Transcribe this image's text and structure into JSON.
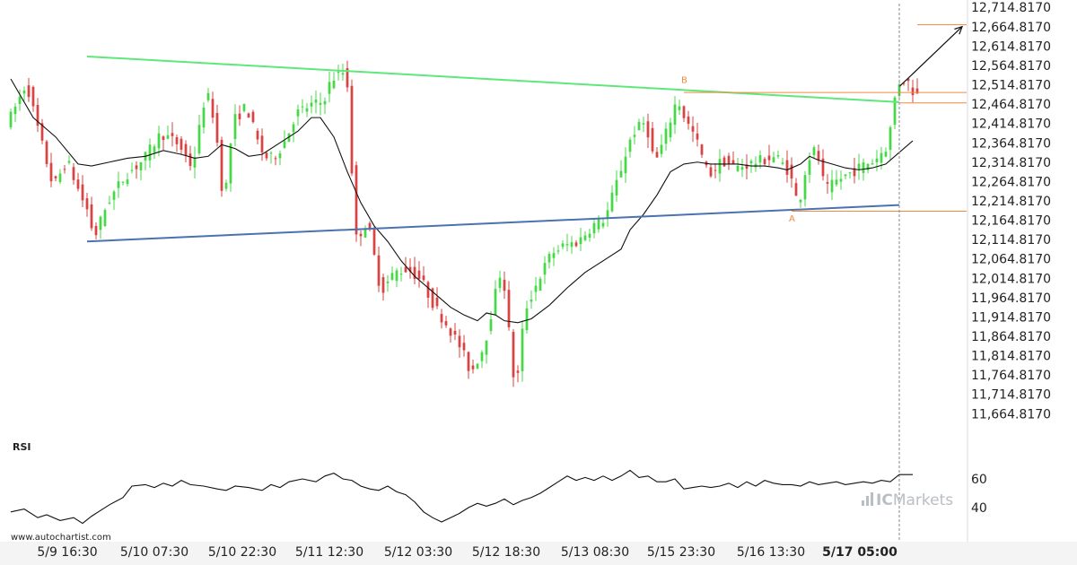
{
  "chart_data": [
    {
      "type": "candlestick",
      "title": "",
      "colors": {
        "up": "#47d847",
        "down": "#d84343",
        "moving_average": "#111111",
        "resistance_line": "#5ee87a",
        "support_line": "#4a72b0",
        "level_lines": "#f08a3c",
        "forecast_arrow": "#111111"
      },
      "y_ticks": [
        "12,714.8170",
        "12,664.8170",
        "12,614.8170",
        "12,564.8170",
        "12,514.8170",
        "12,464.8170",
        "12,414.8170",
        "12,364.8170",
        "12,314.8170",
        "12,264.8170",
        "12,214.8170",
        "12,164.8170",
        "12,114.8170",
        "12,064.8170",
        "12,014.8170",
        "11,964.8170",
        "11,914.8170",
        "11,864.8170",
        "11,814.8170",
        "11,764.8170",
        "11,714.8170",
        "11,664.8170"
      ],
      "x_ticks": [
        "5/9 16:30",
        "5/10 07:30",
        "5/10 22:30",
        "5/11 12:30",
        "5/12 03:30",
        "5/12 18:30",
        "5/13 08:30",
        "5/15 23:30",
        "5/16 13:30",
        "5/17 05:00"
      ],
      "highlighted_x_tick": "5/17 05:00",
      "ylim": [
        11640,
        12720
      ],
      "price_path": [
        [
          0,
          12420
        ],
        [
          4,
          12520
        ],
        [
          7,
          12380
        ],
        [
          10,
          12250
        ],
        [
          13,
          12320
        ],
        [
          16,
          12230
        ],
        [
          18,
          12180
        ],
        [
          19,
          12115
        ],
        [
          22,
          12210
        ],
        [
          26,
          12280
        ],
        [
          30,
          12320
        ],
        [
          34,
          12390
        ],
        [
          38,
          12360
        ],
        [
          41,
          12300
        ],
        [
          44,
          12500
        ],
        [
          46,
          12420
        ],
        [
          48,
          12200
        ],
        [
          50,
          12420
        ],
        [
          53,
          12460
        ],
        [
          56,
          12350
        ],
        [
          58,
          12320
        ],
        [
          60,
          12340
        ],
        [
          62,
          12380
        ],
        [
          64,
          12440
        ],
        [
          67,
          12460
        ],
        [
          70,
          12470
        ],
        [
          72,
          12530
        ],
        [
          75,
          12550
        ],
        [
          76,
          12480
        ],
        [
          77,
          12110
        ],
        [
          80,
          12160
        ],
        [
          83,
          11980
        ],
        [
          86,
          12030
        ],
        [
          89,
          12040
        ],
        [
          92,
          12010
        ],
        [
          95,
          11940
        ],
        [
          98,
          11890
        ],
        [
          101,
          11830
        ],
        [
          103,
          11770
        ],
        [
          106,
          11840
        ],
        [
          108,
          11950
        ],
        [
          110,
          12050
        ],
        [
          112,
          11820
        ],
        [
          113,
          11710
        ],
        [
          115,
          11930
        ],
        [
          118,
          12010
        ],
        [
          121,
          12080
        ],
        [
          124,
          12100
        ],
        [
          127,
          12110
        ],
        [
          130,
          12150
        ],
        [
          133,
          12170
        ],
        [
          136,
          12280
        ],
        [
          139,
          12390
        ],
        [
          142,
          12420
        ],
        [
          144,
          12310
        ],
        [
          146,
          12370
        ],
        [
          149,
          12480
        ],
        [
          151,
          12420
        ],
        [
          153,
          12380
        ],
        [
          156,
          12280
        ],
        [
          159,
          12320
        ],
        [
          162,
          12300
        ],
        [
          165,
          12310
        ],
        [
          168,
          12320
        ],
        [
          171,
          12330
        ],
        [
          174,
          12290
        ],
        [
          176,
          12200
        ],
        [
          178,
          12320
        ],
        [
          180,
          12350
        ],
        [
          182,
          12240
        ],
        [
          185,
          12270
        ],
        [
          188,
          12290
        ],
        [
          191,
          12310
        ],
        [
          193,
          12320
        ],
        [
          196,
          12360
        ],
        [
          198,
          12520
        ],
        [
          200,
          12530
        ],
        [
          202,
          12490
        ]
      ],
      "price_bar_count": 203,
      "moving_average": [
        [
          0,
          12530
        ],
        [
          5,
          12430
        ],
        [
          10,
          12380
        ],
        [
          15,
          12310
        ],
        [
          18,
          12305
        ],
        [
          22,
          12315
        ],
        [
          26,
          12325
        ],
        [
          30,
          12330
        ],
        [
          34,
          12345
        ],
        [
          38,
          12335
        ],
        [
          41,
          12325
        ],
        [
          44,
          12330
        ],
        [
          47,
          12360
        ],
        [
          50,
          12350
        ],
        [
          53,
          12330
        ],
        [
          56,
          12335
        ],
        [
          60,
          12365
        ],
        [
          64,
          12395
        ],
        [
          67,
          12430
        ],
        [
          69,
          12430
        ],
        [
          72,
          12380
        ],
        [
          75,
          12290
        ],
        [
          78,
          12210
        ],
        [
          81,
          12150
        ],
        [
          84,
          12110
        ],
        [
          87,
          12060
        ],
        [
          90,
          12020
        ],
        [
          94,
          11980
        ],
        [
          98,
          11940
        ],
        [
          101,
          11920
        ],
        [
          104,
          11905
        ],
        [
          106,
          11925
        ],
        [
          108,
          11920
        ],
        [
          110,
          11905
        ],
        [
          113,
          11900
        ],
        [
          116,
          11910
        ],
        [
          120,
          11945
        ],
        [
          124,
          11990
        ],
        [
          128,
          12030
        ],
        [
          132,
          12060
        ],
        [
          136,
          12090
        ],
        [
          138,
          12140
        ],
        [
          141,
          12180
        ],
        [
          144,
          12230
        ],
        [
          147,
          12290
        ],
        [
          150,
          12310
        ],
        [
          153,
          12315
        ],
        [
          156,
          12310
        ],
        [
          159,
          12310
        ],
        [
          162,
          12310
        ],
        [
          165,
          12305
        ],
        [
          168,
          12305
        ],
        [
          171,
          12300
        ],
        [
          173,
          12295
        ],
        [
          176,
          12310
        ],
        [
          178,
          12330
        ],
        [
          180,
          12320
        ],
        [
          183,
          12310
        ],
        [
          186,
          12300
        ],
        [
          189,
          12295
        ],
        [
          192,
          12300
        ],
        [
          195,
          12310
        ],
        [
          198,
          12340
        ],
        [
          201,
          12370
        ]
      ],
      "resistance_line": [
        [
          17,
          12588
        ],
        [
          198,
          12470
        ]
      ],
      "support_line": [
        [
          17,
          12110
        ],
        [
          198,
          12204
        ]
      ],
      "levels": [
        {
          "name": "upper",
          "value": 12495,
          "from": 150,
          "to": 213
        },
        {
          "name": "breakout",
          "value": 12468,
          "from": 198,
          "to": 213
        },
        {
          "name": "target",
          "value": 12670,
          "from": 202,
          "to": 213
        },
        {
          "name": "support",
          "value": 12188,
          "from": 174,
          "to": 213
        }
      ],
      "points": [
        {
          "label": "B",
          "x": 150,
          "value": 12510
        },
        {
          "label": "A",
          "x": 174,
          "value": 12185
        }
      ],
      "forecast_arrow": {
        "from": [
          198,
          12510
        ],
        "to": [
          212,
          12665
        ]
      },
      "time_marker_index": 198
    },
    {
      "type": "line",
      "title": "RSI",
      "y_ticks": [
        "60",
        "40"
      ],
      "ylim": [
        25,
        75
      ],
      "series": [
        {
          "values": [
            [
              0,
              37
            ],
            [
              3,
              39
            ],
            [
              6,
              33
            ],
            [
              8,
              35
            ],
            [
              11,
              31
            ],
            [
              14,
              33
            ],
            [
              16,
              29
            ],
            [
              18,
              34
            ],
            [
              20,
              38
            ],
            [
              22,
              42
            ],
            [
              25,
              47
            ],
            [
              27,
              55
            ],
            [
              30,
              56
            ],
            [
              32,
              54
            ],
            [
              34,
              57
            ],
            [
              36,
              55
            ],
            [
              38,
              59
            ],
            [
              40,
              56
            ],
            [
              43,
              55
            ],
            [
              46,
              53
            ],
            [
              48,
              52
            ],
            [
              50,
              55
            ],
            [
              53,
              54
            ],
            [
              56,
              52
            ],
            [
              58,
              56
            ],
            [
              60,
              54
            ],
            [
              62,
              58
            ],
            [
              65,
              60
            ],
            [
              68,
              58
            ],
            [
              70,
              62
            ],
            [
              72,
              64
            ],
            [
              74,
              60
            ],
            [
              76,
              59
            ],
            [
              78,
              55
            ],
            [
              80,
              53
            ],
            [
              82,
              52
            ],
            [
              84,
              55
            ],
            [
              86,
              51
            ],
            [
              88,
              49
            ],
            [
              90,
              44
            ],
            [
              92,
              37
            ],
            [
              94,
              33
            ],
            [
              96,
              30
            ],
            [
              98,
              33
            ],
            [
              100,
              36
            ],
            [
              102,
              40
            ],
            [
              104,
              43
            ],
            [
              106,
              41
            ],
            [
              108,
              43
            ],
            [
              110,
              46
            ],
            [
              112,
              42
            ],
            [
              114,
              45
            ],
            [
              116,
              47
            ],
            [
              118,
              50
            ],
            [
              120,
              54
            ],
            [
              122,
              58
            ],
            [
              124,
              62
            ],
            [
              126,
              59
            ],
            [
              128,
              61
            ],
            [
              130,
              59
            ],
            [
              132,
              62
            ],
            [
              134,
              59
            ],
            [
              136,
              62
            ],
            [
              138,
              66
            ],
            [
              140,
              61
            ],
            [
              142,
              62
            ],
            [
              144,
              58
            ],
            [
              146,
              58
            ],
            [
              148,
              60
            ],
            [
              150,
              53
            ],
            [
              152,
              54
            ],
            [
              154,
              55
            ],
            [
              156,
              54
            ],
            [
              158,
              55
            ],
            [
              160,
              57
            ],
            [
              162,
              54
            ],
            [
              164,
              58
            ],
            [
              166,
              55
            ],
            [
              168,
              59
            ],
            [
              170,
              57
            ],
            [
              172,
              56
            ],
            [
              174,
              56
            ],
            [
              176,
              55
            ],
            [
              178,
              58
            ],
            [
              180,
              56
            ],
            [
              182,
              57
            ],
            [
              184,
              58
            ],
            [
              186,
              56
            ],
            [
              188,
              57
            ],
            [
              190,
              58
            ],
            [
              192,
              57
            ],
            [
              194,
              59
            ],
            [
              196,
              58
            ],
            [
              198,
              63
            ],
            [
              201,
              63
            ]
          ]
        }
      ]
    }
  ],
  "branding": {
    "source_text": "www.autochartist.com",
    "brand_prefix": "IC",
    "brand_suffix": "Markets"
  }
}
